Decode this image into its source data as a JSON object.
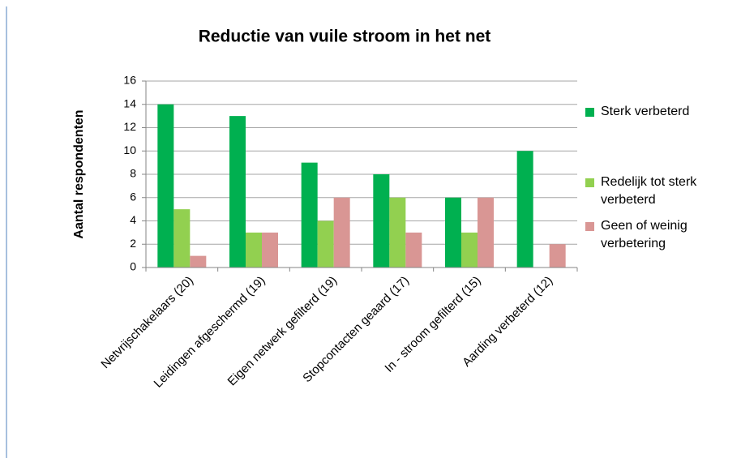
{
  "chart_data": {
    "type": "bar",
    "title": "Reductie van vuile stroom in het net",
    "y_label": "Aantal respondenten",
    "categories": [
      "Netvrijschakelaars (20)",
      "Leidingen afgeschermd (19)",
      "Eigen netwerk gefilterd (19)",
      "Stopcontacten geaard (17)",
      "In - stroom gefilterd (15)",
      "Aarding verbeterd (12)"
    ],
    "series": [
      {
        "name": "Sterk verbeterd",
        "color": "#00b050",
        "values": [
          14,
          13,
          9,
          8,
          6,
          10
        ]
      },
      {
        "name": "Redelijk tot sterk verbeterd",
        "color": "#92d050",
        "values": [
          5,
          3,
          4,
          6,
          3,
          0
        ]
      },
      {
        "name": "Geen of weinig verbetering",
        "color": "#d99694",
        "values": [
          1,
          3,
          6,
          3,
          6,
          2
        ]
      }
    ],
    "ylim": [
      0,
      16
    ],
    "yticks": [
      0,
      2,
      4,
      6,
      8,
      10,
      12,
      14,
      16
    ],
    "grid": true,
    "legend": "right"
  }
}
